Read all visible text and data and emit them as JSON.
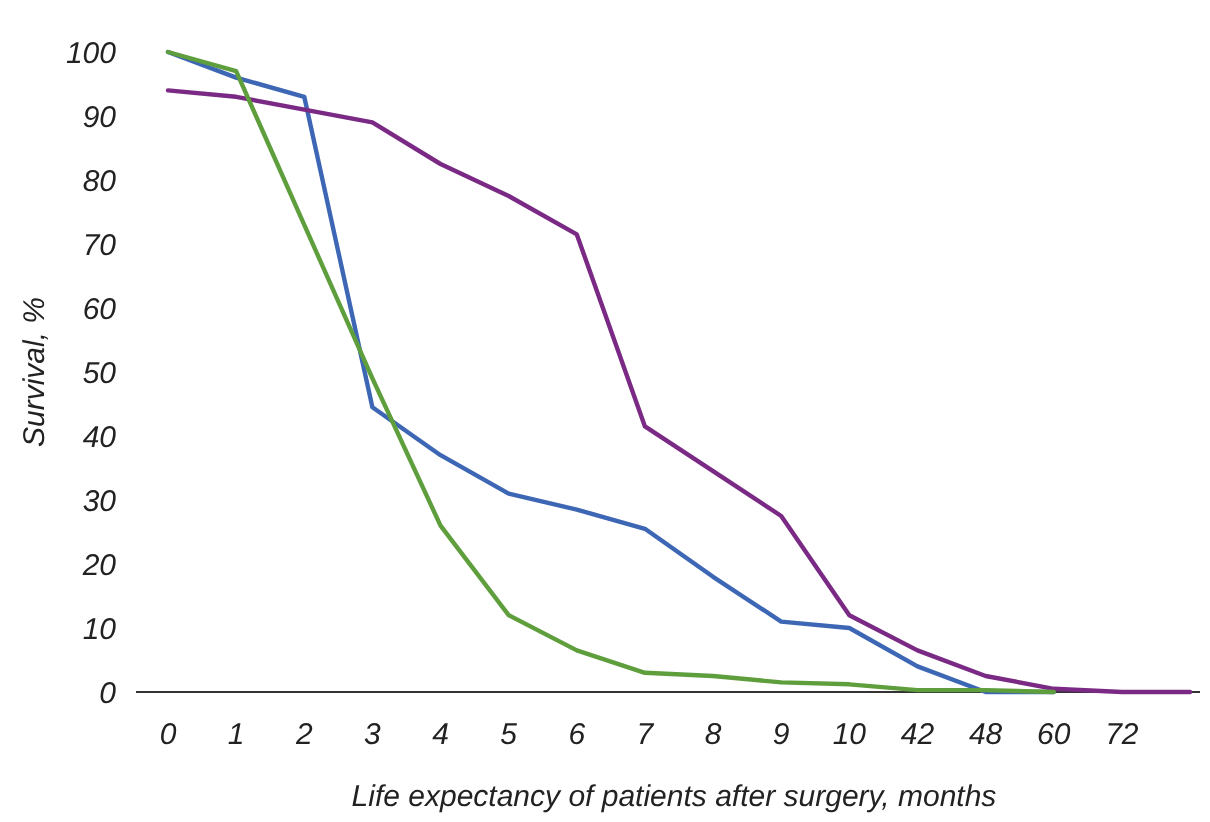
{
  "chart_data": {
    "type": "line",
    "xlabel": "Life expectancy of patients after surgery, months",
    "ylabel": "Survival, %",
    "categories": [
      "0",
      "1",
      "2",
      "3",
      "4",
      "5",
      "6",
      "7",
      "8",
      "9",
      "10",
      "42",
      "48",
      "60",
      "72",
      null
    ],
    "ylim": [
      0,
      100
    ],
    "yticks": [
      0,
      10,
      20,
      30,
      40,
      50,
      60,
      70,
      80,
      90,
      100
    ],
    "grid": false,
    "marker": "none",
    "line_style": "solid",
    "series": [
      {
        "color": "#3d67b4",
        "values": [
          100,
          96,
          93,
          44.5,
          37,
          31,
          28.5,
          25.5,
          18,
          11,
          10,
          4,
          0,
          0,
          null,
          null
        ]
      },
      {
        "color": "#7a2a84",
        "values": [
          94,
          93,
          91,
          89,
          82.5,
          77.5,
          71.5,
          41.5,
          34.5,
          27.5,
          12,
          6.5,
          2.5,
          0.5,
          0,
          0
        ]
      },
      {
        "color": "#5e9e3c",
        "values": [
          100,
          97,
          73,
          49,
          26,
          12,
          6.5,
          3,
          2.5,
          1.5,
          1.2,
          0.3,
          0.3,
          0,
          null,
          null
        ]
      }
    ]
  }
}
